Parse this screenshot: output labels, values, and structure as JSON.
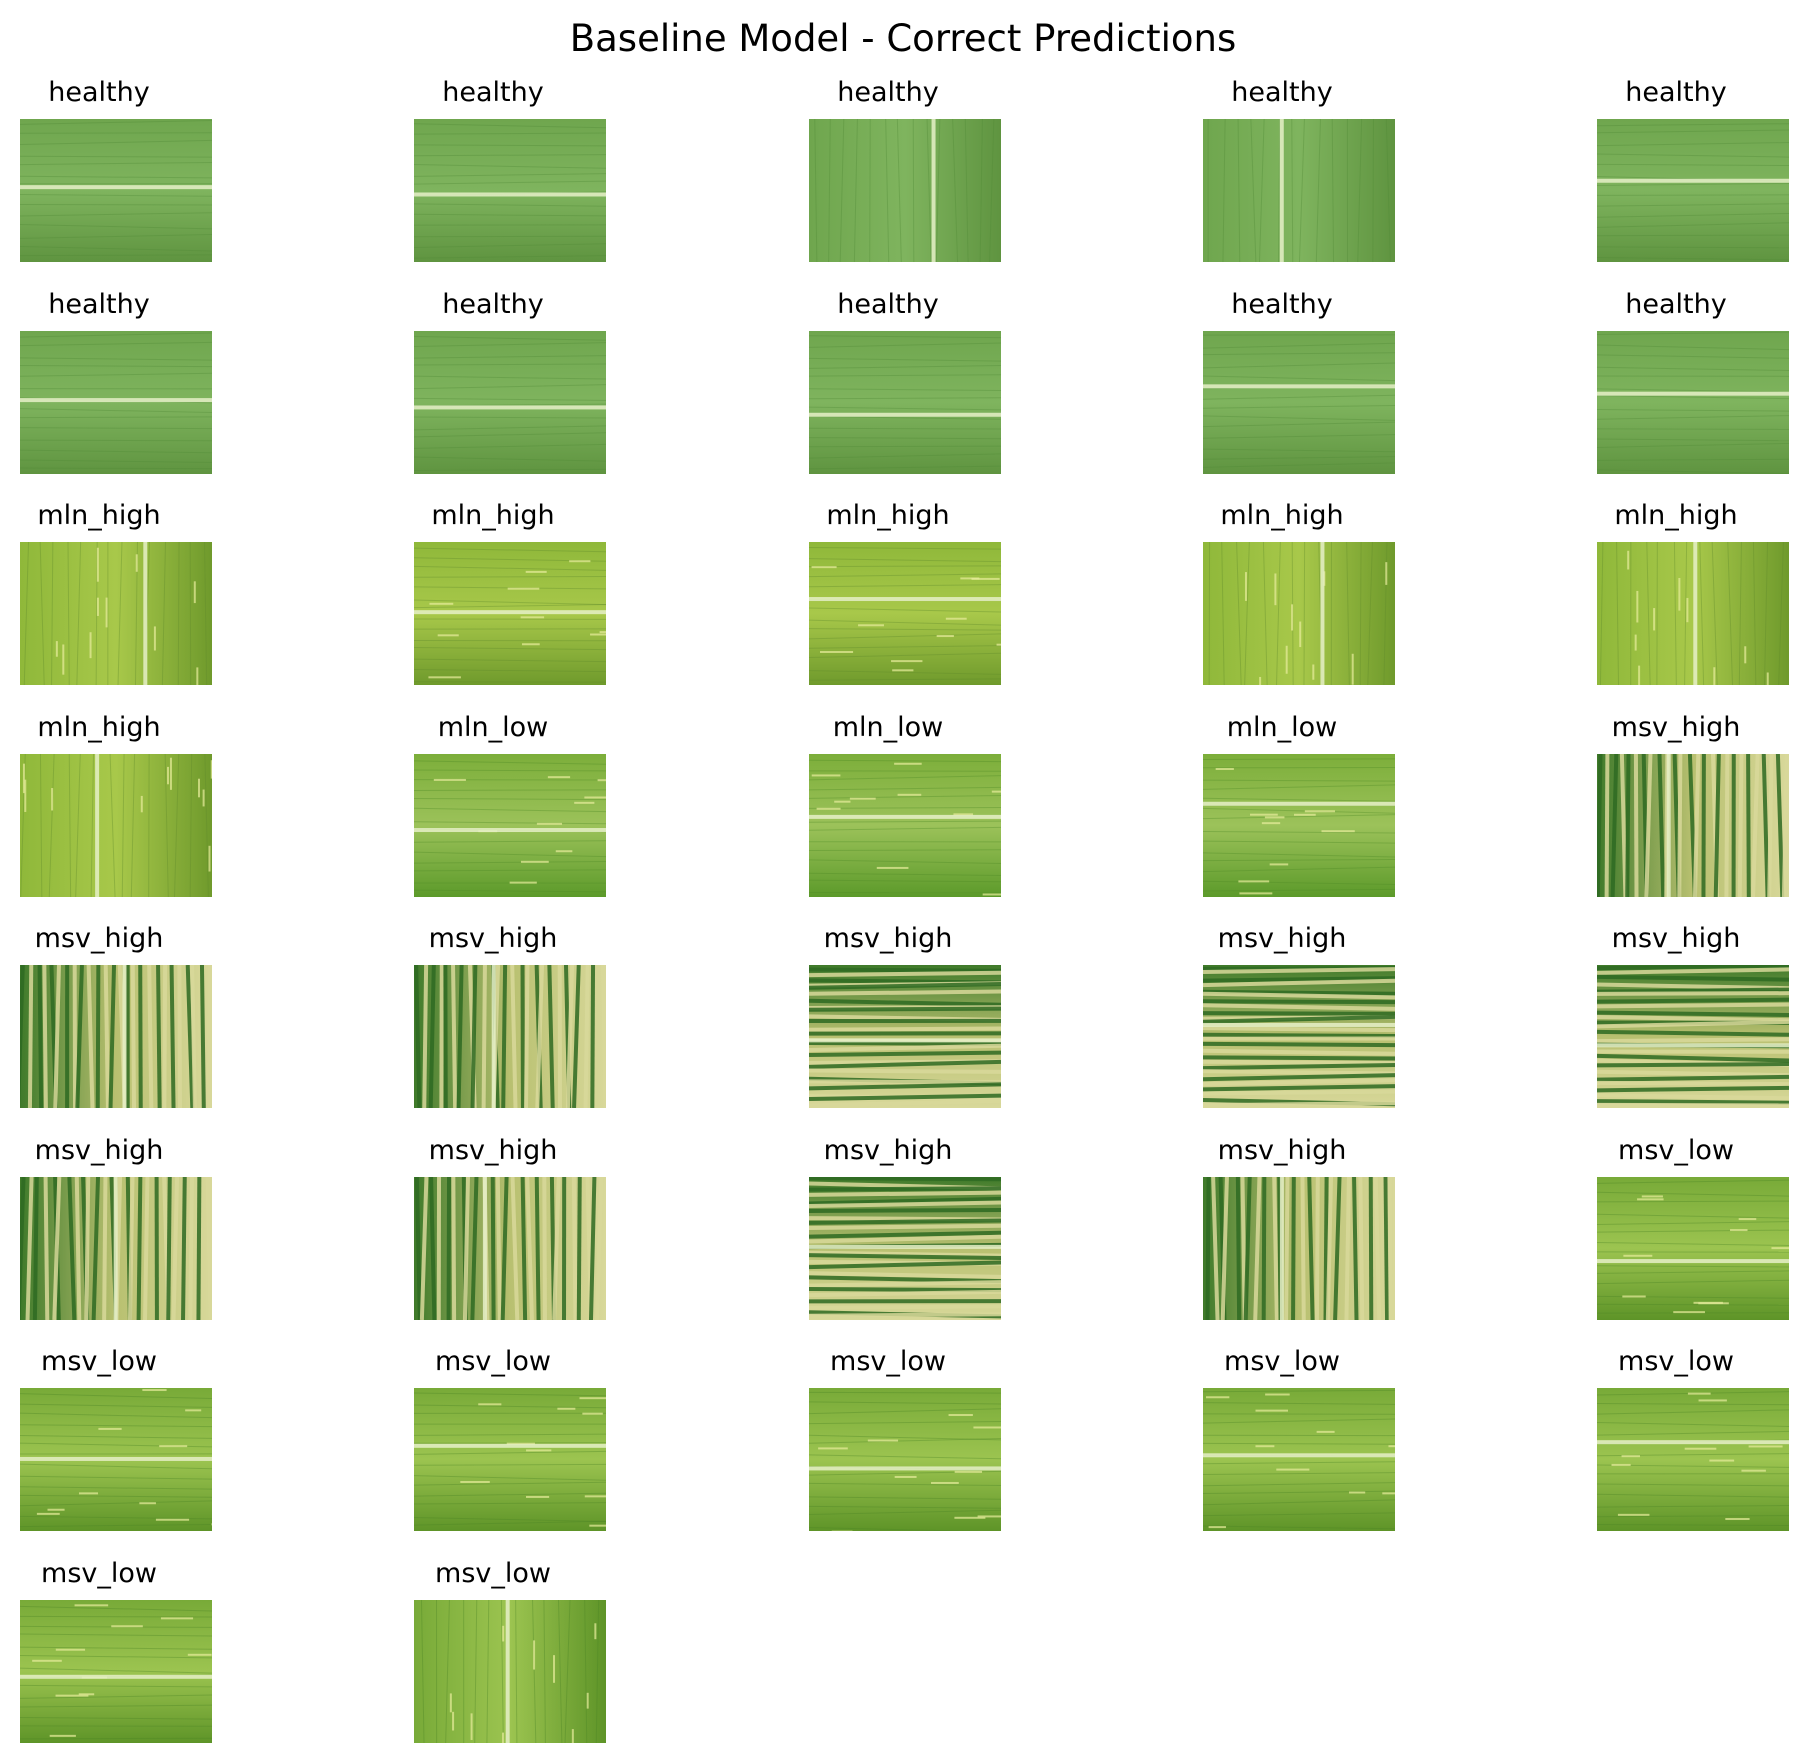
{
  "title": "Baseline Model - Correct Predictions",
  "grid": {
    "columns": 5
  },
  "colors": {
    "healthy": [
      "#6fa64e",
      "#5f9440",
      "#7fb45e",
      "#4f8a36"
    ],
    "mln_high": [
      "#8fb83a",
      "#6f9a2c",
      "#a8c84a",
      "#5e8a2a"
    ],
    "mln_low": [
      "#7cae3a",
      "#5c9a2a",
      "#9cc25a",
      "#4e8a26"
    ],
    "msv_high": [
      "#3f7a2a",
      "#d8d89a",
      "#b8c070",
      "#2e6a22"
    ],
    "msv_low": [
      "#78aa38",
      "#5e9428",
      "#9cc450",
      "#4a8424"
    ]
  },
  "panels": [
    {
      "label": "healthy",
      "kind": "healthy",
      "orient": "h"
    },
    {
      "label": "healthy",
      "kind": "healthy",
      "orient": "h"
    },
    {
      "label": "healthy",
      "kind": "healthy",
      "orient": "v"
    },
    {
      "label": "healthy",
      "kind": "healthy",
      "orient": "v"
    },
    {
      "label": "healthy",
      "kind": "healthy",
      "orient": "h"
    },
    {
      "label": "healthy",
      "kind": "healthy",
      "orient": "h"
    },
    {
      "label": "healthy",
      "kind": "healthy",
      "orient": "h"
    },
    {
      "label": "healthy",
      "kind": "healthy",
      "orient": "h"
    },
    {
      "label": "healthy",
      "kind": "healthy",
      "orient": "h"
    },
    {
      "label": "healthy",
      "kind": "healthy",
      "orient": "h"
    },
    {
      "label": "mln_high",
      "kind": "mln_high",
      "orient": "v"
    },
    {
      "label": "mln_high",
      "kind": "mln_high",
      "orient": "h"
    },
    {
      "label": "mln_high",
      "kind": "mln_high",
      "orient": "h"
    },
    {
      "label": "mln_high",
      "kind": "mln_high",
      "orient": "v"
    },
    {
      "label": "mln_high",
      "kind": "mln_high",
      "orient": "v"
    },
    {
      "label": "mln_high",
      "kind": "mln_high",
      "orient": "v"
    },
    {
      "label": "mln_low",
      "kind": "mln_low",
      "orient": "h"
    },
    {
      "label": "mln_low",
      "kind": "mln_low",
      "orient": "h"
    },
    {
      "label": "mln_low",
      "kind": "mln_low",
      "orient": "h"
    },
    {
      "label": "msv_high",
      "kind": "msv_high",
      "orient": "v"
    },
    {
      "label": "msv_high",
      "kind": "msv_high",
      "orient": "v"
    },
    {
      "label": "msv_high",
      "kind": "msv_high",
      "orient": "v"
    },
    {
      "label": "msv_high",
      "kind": "msv_high",
      "orient": "h"
    },
    {
      "label": "msv_high",
      "kind": "msv_high",
      "orient": "h"
    },
    {
      "label": "msv_high",
      "kind": "msv_high",
      "orient": "h"
    },
    {
      "label": "msv_high",
      "kind": "msv_high",
      "orient": "v"
    },
    {
      "label": "msv_high",
      "kind": "msv_high",
      "orient": "v"
    },
    {
      "label": "msv_high",
      "kind": "msv_high",
      "orient": "h"
    },
    {
      "label": "msv_high",
      "kind": "msv_high",
      "orient": "v"
    },
    {
      "label": "msv_low",
      "kind": "msv_low",
      "orient": "h"
    },
    {
      "label": "msv_low",
      "kind": "msv_low",
      "orient": "h"
    },
    {
      "label": "msv_low",
      "kind": "msv_low",
      "orient": "h"
    },
    {
      "label": "msv_low",
      "kind": "msv_low",
      "orient": "h"
    },
    {
      "label": "msv_low",
      "kind": "msv_low",
      "orient": "h"
    },
    {
      "label": "msv_low",
      "kind": "msv_low",
      "orient": "h"
    },
    {
      "label": "msv_low",
      "kind": "msv_low",
      "orient": "h"
    },
    {
      "label": "msv_low",
      "kind": "msv_low",
      "orient": "v"
    }
  ]
}
